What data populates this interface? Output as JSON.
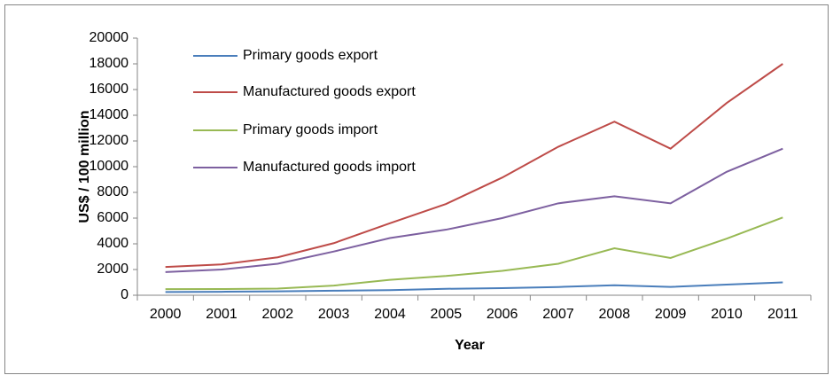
{
  "chart_data": {
    "type": "line",
    "x_label": "Year",
    "y_label": "US$ / 100 million",
    "categories": [
      "2000",
      "2001",
      "2002",
      "2003",
      "2004",
      "2005",
      "2006",
      "2007",
      "2008",
      "2009",
      "2010",
      "2011"
    ],
    "series": [
      {
        "name": "Primary goods export",
        "color": "#4a7ebb",
        "values": [
          250,
          270,
          300,
          350,
          400,
          500,
          550,
          640,
          780,
          650,
          830,
          1000
        ]
      },
      {
        "name": "Manufactured goods export",
        "color": "#be4b48",
        "values": [
          2200,
          2400,
          2950,
          4050,
          5600,
          7100,
          9150,
          11550,
          13500,
          11400,
          14950,
          18000
        ]
      },
      {
        "name": "Primary goods import",
        "color": "#98b954",
        "values": [
          470,
          480,
          520,
          750,
          1200,
          1500,
          1900,
          2450,
          3650,
          2900,
          4400,
          6050
        ]
      },
      {
        "name": "Manufactured goods import",
        "color": "#7d60a0",
        "values": [
          1800,
          2000,
          2450,
          3400,
          4450,
          5100,
          6000,
          7150,
          7700,
          7150,
          9600,
          11400
        ]
      }
    ],
    "ylim": [
      0,
      20000
    ],
    "yticks": [
      0,
      2000,
      4000,
      6000,
      8000,
      10000,
      12000,
      14000,
      16000,
      18000,
      20000
    ],
    "grid": false,
    "legend": "top-left"
  }
}
